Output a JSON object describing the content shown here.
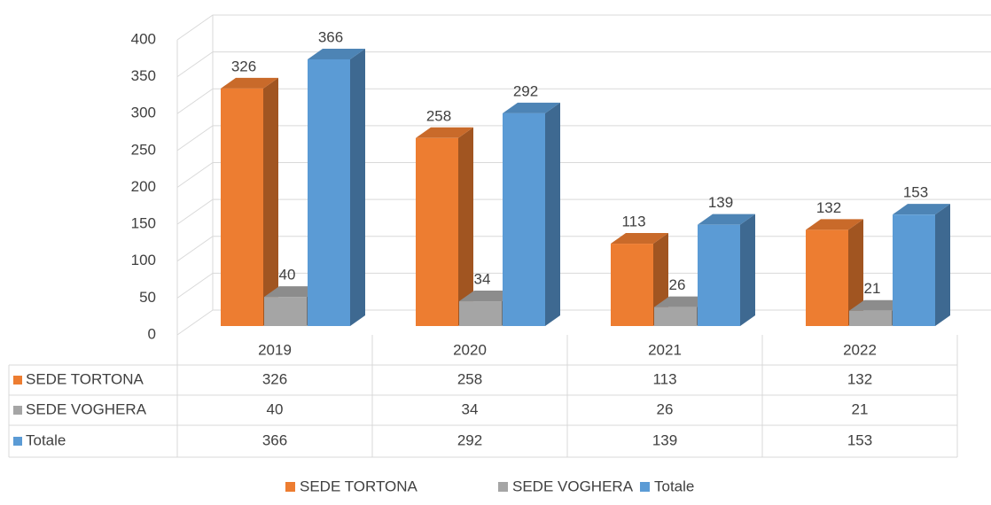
{
  "chart_data": {
    "type": "bar3d",
    "categories": [
      "2019",
      "2020",
      "2021",
      "2022"
    ],
    "series": [
      {
        "name": "SEDE TORTONA",
        "color": "#ed7d31",
        "values": [
          326,
          258,
          113,
          132
        ]
      },
      {
        "name": "SEDE VOGHERA",
        "color": "#a5a5a5",
        "values": [
          40,
          34,
          26,
          21
        ]
      },
      {
        "name": "Totale",
        "color": "#5b9bd5",
        "values": [
          366,
          292,
          139,
          153
        ]
      }
    ],
    "ylim": [
      0,
      400
    ],
    "yticks": [
      0,
      50,
      100,
      150,
      200,
      250,
      300,
      350,
      400
    ],
    "grid": true,
    "data_table": true,
    "legend": "bottom"
  }
}
